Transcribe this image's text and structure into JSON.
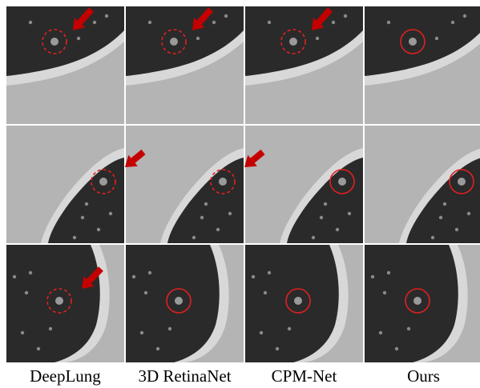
{
  "figure": {
    "columns": [
      {
        "label": "DeepLung"
      },
      {
        "label": "3D RetinaNet"
      },
      {
        "label": "CPM-Net"
      },
      {
        "label": "Ours"
      }
    ],
    "rows": [
      {
        "cells": [
          {
            "marker": "dashed",
            "arrow": true
          },
          {
            "marker": "dashed",
            "arrow": true
          },
          {
            "marker": "dashed",
            "arrow": true
          },
          {
            "marker": "solid",
            "arrow": false
          }
        ]
      },
      {
        "cells": [
          {
            "marker": "dashed",
            "arrow": true
          },
          {
            "marker": "dashed",
            "arrow": true
          },
          {
            "marker": "solid",
            "arrow": false
          },
          {
            "marker": "solid",
            "arrow": false
          }
        ]
      },
      {
        "cells": [
          {
            "marker": "dashed",
            "arrow": true
          },
          {
            "marker": "solid",
            "arrow": false
          },
          {
            "marker": "solid",
            "arrow": false
          },
          {
            "marker": "solid",
            "arrow": false
          }
        ]
      }
    ],
    "colors": {
      "background": "#b4b4b4",
      "lung": "#2a2a2a",
      "chest_wall": "#d8d8d8",
      "marker": "#e02020",
      "arrow": "#c40000"
    }
  }
}
